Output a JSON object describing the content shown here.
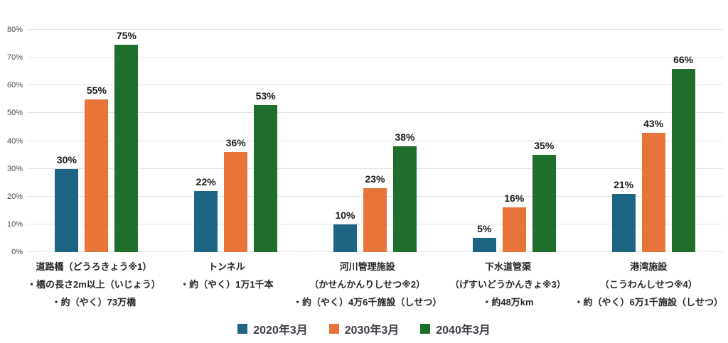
{
  "chart_data": {
    "type": "bar",
    "title": "",
    "xlabel": "",
    "ylabel": "",
    "ylim": [
      0,
      80
    ],
    "ytick_step": 10,
    "yticks": [
      "0%",
      "10%",
      "20%",
      "30%",
      "40%",
      "50%",
      "60%",
      "70%",
      "80%"
    ],
    "grid": true,
    "legend_position": "bottom",
    "value_suffix": "%",
    "categories": [
      {
        "lines": [
          "道路橋（どうろきょう※1）",
          "・橋の長さ2m以上（いじょう）",
          "・約（やく）73万橋"
        ]
      },
      {
        "lines": [
          "トンネル",
          "・約（やく）1万1千本"
        ]
      },
      {
        "lines": [
          "河川管理施設",
          "（かせんかんりしせつ※2）",
          "・約（やく）4万6千施設（しせつ）"
        ]
      },
      {
        "lines": [
          "下水道管渠",
          "（げすいどうかんきょ※3）",
          "・約48万km"
        ]
      },
      {
        "lines": [
          "港湾施設",
          "（こうわんしせつ※4）",
          "・約（やく）6万1千施設（しせつ）"
        ]
      }
    ],
    "series": [
      {
        "name": "2020年3月",
        "color": "#1e6583",
        "values": [
          30,
          22,
          10,
          5,
          21
        ]
      },
      {
        "name": "2030年3月",
        "color": "#e8743a",
        "values": [
          55,
          36,
          23,
          16,
          43
        ]
      },
      {
        "name": "2040年3月",
        "color": "#1f6e2c",
        "values": [
          75,
          53,
          38,
          35,
          66
        ]
      }
    ],
    "colors": {
      "gridline": "#e4e4e4",
      "tick_label": "#4a4a4a",
      "value_label": "#1a1a1a",
      "category_label": "#262626",
      "legend_label": "#3d3d49",
      "background": "#ffffff"
    }
  }
}
